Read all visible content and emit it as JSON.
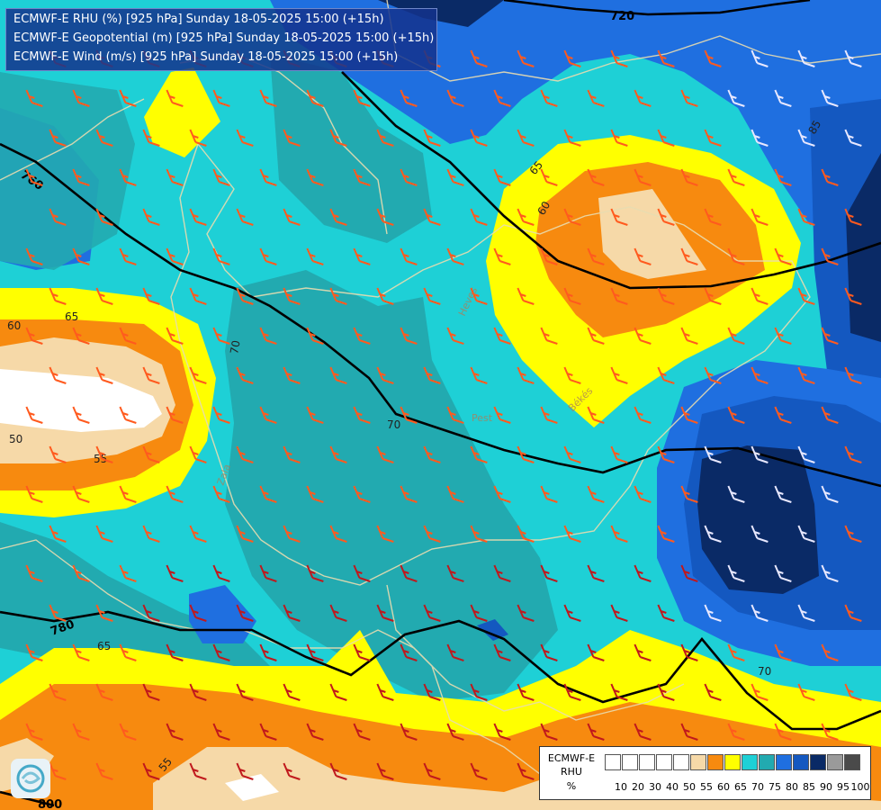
{
  "header": {
    "line1": "ECMWF-E RHU (%) [925 hPa] Sunday 18-05-2025 15:00 (+15h)",
    "line2": "ECMWF-E Geopotential (m) [925 hPa] Sunday 18-05-2025 15:00 (+15h)",
    "line3": "ECMWF-E Wind (m/s) [925 hPa] Sunday 18-05-2025 15:00 (+15h)"
  },
  "legend": {
    "title1": "ECMWF-E",
    "title2": "RHU",
    "unit": "%",
    "bins": [
      {
        "label": "10",
        "color": "#ffffff"
      },
      {
        "label": "20",
        "color": "#ffffff"
      },
      {
        "label": "30",
        "color": "#ffffff"
      },
      {
        "label": "40",
        "color": "#ffffff"
      },
      {
        "label": "50",
        "color": "#ffffff"
      },
      {
        "label": "55",
        "color": "#f6d9a8"
      },
      {
        "label": "60",
        "color": "#f78a0f"
      },
      {
        "label": "65",
        "color": "#ffff00"
      },
      {
        "label": "70",
        "color": "#1ed0d6"
      },
      {
        "label": "75",
        "color": "#22aab0"
      },
      {
        "label": "80",
        "color": "#1f6fe0"
      },
      {
        "label": "85",
        "color": "#1458c0"
      },
      {
        "label": "90",
        "color": "#0a2a66"
      },
      {
        "label": "95",
        "color": "#9a9a9a"
      },
      {
        "label": "100",
        "color": "#4a4a4a"
      }
    ]
  },
  "geopotential_labels": [
    "720",
    "760",
    "780",
    "800"
  ],
  "rhu_labels": [
    "50",
    "55",
    "60",
    "65",
    "70",
    "85"
  ],
  "place_labels": [
    "Békés",
    "Pest",
    "Zala",
    "Heves"
  ],
  "colors": {
    "teal": "#22aab0",
    "cyan": "#1ed0d6",
    "yellow": "#ffff00",
    "orange": "#f78a0f",
    "tan": "#f6d9a8",
    "blue": "#1f6fe0",
    "navy": "#0a2a66",
    "contour": "#000000",
    "border": "#e8dcb0"
  }
}
